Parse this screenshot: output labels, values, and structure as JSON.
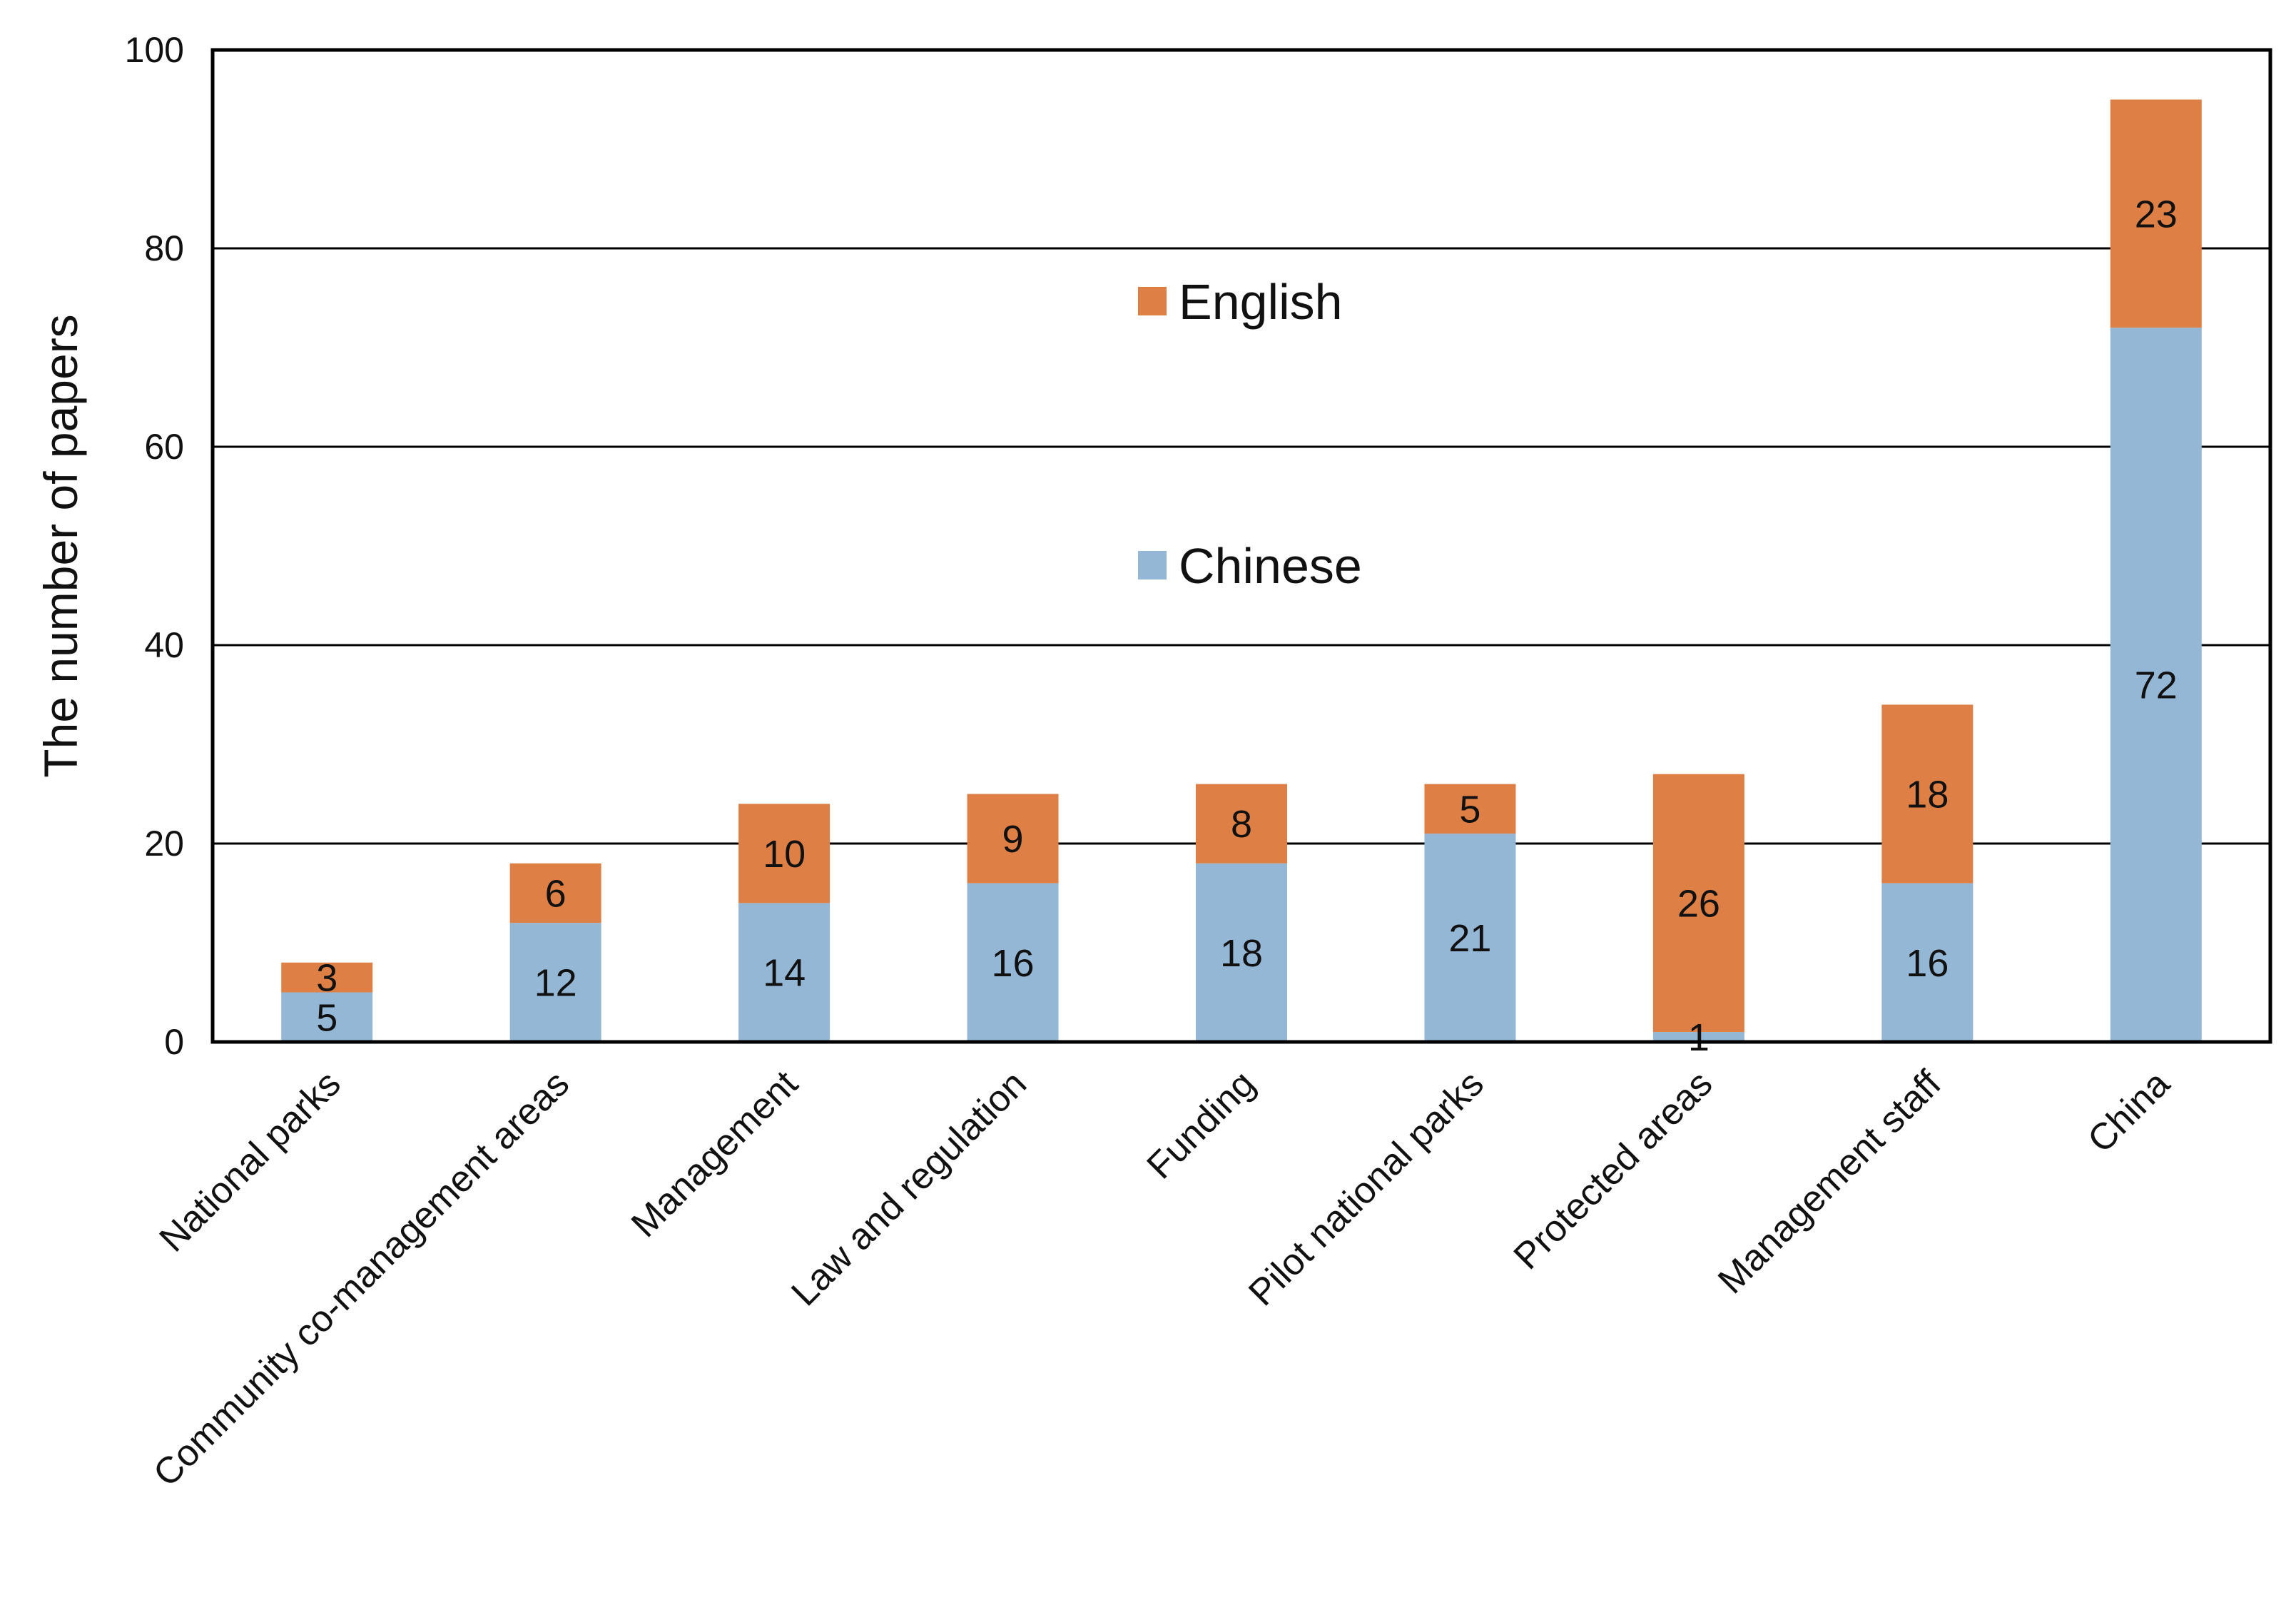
{
  "chart_data": {
    "type": "bar",
    "stacked": true,
    "ylabel": "The number of papers",
    "xlabel": "",
    "ylim": [
      0,
      100
    ],
    "yticks": [
      0,
      20,
      40,
      60,
      80,
      100
    ],
    "grid": true,
    "legend_position": "center",
    "categories": [
      "National parks",
      "Community co-management areas",
      "Management",
      "Law and regulation",
      "Funding",
      "Pilot national parks",
      "Protected areas",
      "Management staff",
      "China"
    ],
    "series": [
      {
        "name": "Chinese",
        "color": "#95B7D6",
        "values": [
          5,
          12,
          14,
          16,
          18,
          21,
          1,
          16,
          72
        ]
      },
      {
        "name": "English",
        "color": "#DE8046",
        "values": [
          3,
          6,
          10,
          9,
          8,
          5,
          26,
          18,
          23
        ]
      }
    ]
  }
}
